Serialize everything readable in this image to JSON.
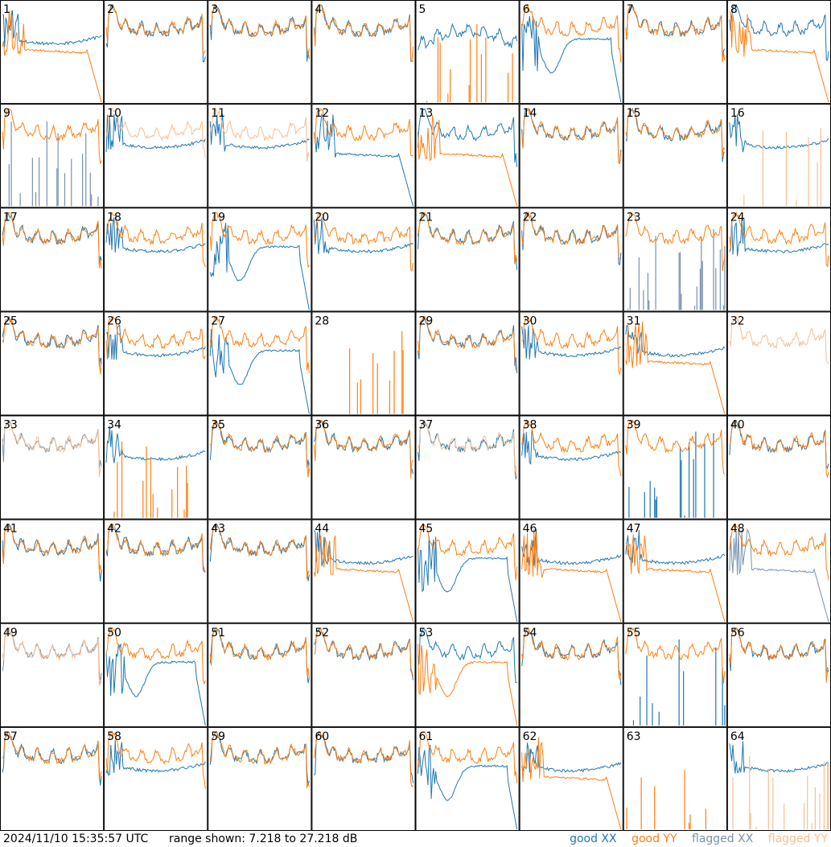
{
  "footer": {
    "timestamp": "2024/11/10 15:35:57 UTC",
    "range_text": "range shown: 7.218 to 27.218 dB"
  },
  "legend": [
    {
      "label": "good XX",
      "color": "#1f77b4"
    },
    {
      "label": "good YY",
      "color": "#ff7f0e"
    },
    {
      "label": "flagged XX",
      "color": "#7792b0"
    },
    {
      "label": "flagged YY",
      "color": "#f7bf93"
    }
  ],
  "chart_data": {
    "type": "line",
    "grid": {
      "rows": 8,
      "cols": 8
    },
    "ylim": [
      7.218,
      27.218
    ],
    "yunit": "dB",
    "panels": [
      {
        "label": "1",
        "xx": "good",
        "yy": "good",
        "xx_shape": "s3",
        "yy_shape": "sag"
      },
      {
        "label": "2",
        "xx": "good",
        "yy": "good",
        "xx_shape": "bowl",
        "yy_shape": "bowl"
      },
      {
        "label": "3",
        "xx": "good",
        "yy": "good",
        "xx_shape": "bowl",
        "yy_shape": "bowl"
      },
      {
        "label": "4",
        "xx": "good",
        "yy": "good",
        "xx_shape": "bowl",
        "yy_shape": "bowl"
      },
      {
        "label": "5",
        "xx": "good",
        "yy": "good",
        "xx_shape": "hump",
        "yy_shape": "spikes"
      },
      {
        "label": "6",
        "xx": "good",
        "yy": "good",
        "xx_shape": "dip",
        "yy_shape": "bowl"
      },
      {
        "label": "7",
        "xx": "good",
        "yy": "good",
        "xx_shape": "bowl",
        "yy_shape": "bowl"
      },
      {
        "label": "8",
        "xx": "good",
        "yy": "good",
        "xx_shape": "bowl",
        "yy_shape": "sag"
      },
      {
        "label": "9",
        "xx": "flagged",
        "yy": "good",
        "xx_shape": "spikes",
        "yy_shape": "bowl"
      },
      {
        "label": "10",
        "xx": "good",
        "yy": "flagged",
        "xx_shape": "s3",
        "yy_shape": "bowl"
      },
      {
        "label": "11",
        "xx": "good",
        "yy": "flagged",
        "xx_shape": "s3",
        "yy_shape": "bowl"
      },
      {
        "label": "12",
        "xx": "good",
        "yy": "good",
        "xx_shape": "sag",
        "yy_shape": "bowl"
      },
      {
        "label": "13",
        "xx": "good",
        "yy": "good",
        "xx_shape": "bowl",
        "yy_shape": "sag"
      },
      {
        "label": "14",
        "xx": "good",
        "yy": "good",
        "xx_shape": "bowl",
        "yy_shape": "bowl"
      },
      {
        "label": "15",
        "xx": "good",
        "yy": "good",
        "xx_shape": "bowl",
        "yy_shape": "bowl"
      },
      {
        "label": "16",
        "xx": "good",
        "yy": "flagged",
        "xx_shape": "s3",
        "yy_shape": "spikes"
      },
      {
        "label": "17",
        "xx": "good",
        "yy": "good",
        "xx_shape": "bowl",
        "yy_shape": "bowl"
      },
      {
        "label": "18",
        "xx": "good",
        "yy": "good",
        "xx_shape": "s3",
        "yy_shape": "bowl"
      },
      {
        "label": "19",
        "xx": "good",
        "yy": "good",
        "xx_shape": "dip",
        "yy_shape": "bowl"
      },
      {
        "label": "20",
        "xx": "good",
        "yy": "good",
        "xx_shape": "s3",
        "yy_shape": "bowl"
      },
      {
        "label": "21",
        "xx": "good",
        "yy": "good",
        "xx_shape": "bowl",
        "yy_shape": "bowl"
      },
      {
        "label": "22",
        "xx": "good",
        "yy": "good",
        "xx_shape": "bowl",
        "yy_shape": "bowl"
      },
      {
        "label": "23",
        "xx": "flagged",
        "yy": "good",
        "xx_shape": "spikes",
        "yy_shape": "bowl"
      },
      {
        "label": "24",
        "xx": "good",
        "yy": "good",
        "xx_shape": "s3",
        "yy_shape": "bowl"
      },
      {
        "label": "25",
        "xx": "good",
        "yy": "good",
        "xx_shape": "bowl",
        "yy_shape": "bowl"
      },
      {
        "label": "26",
        "xx": "good",
        "yy": "good",
        "xx_shape": "s3",
        "yy_shape": "bowl"
      },
      {
        "label": "27",
        "xx": "good",
        "yy": "good",
        "xx_shape": "dip",
        "yy_shape": "bowl"
      },
      {
        "label": "28",
        "xx": "none",
        "yy": "good",
        "xx_shape": "none",
        "yy_shape": "spikes"
      },
      {
        "label": "29",
        "xx": "good",
        "yy": "good",
        "xx_shape": "bowl",
        "yy_shape": "bowl"
      },
      {
        "label": "30",
        "xx": "good",
        "yy": "good",
        "xx_shape": "s3",
        "yy_shape": "bowl"
      },
      {
        "label": "31",
        "xx": "good",
        "yy": "good",
        "xx_shape": "s3",
        "yy_shape": "sag"
      },
      {
        "label": "32",
        "xx": "none",
        "yy": "flagged",
        "xx_shape": "none",
        "yy_shape": "bowl"
      },
      {
        "label": "33",
        "xx": "flagged",
        "yy": "flagged",
        "xx_shape": "bowl",
        "yy_shape": "bowl"
      },
      {
        "label": "34",
        "xx": "good",
        "yy": "good",
        "xx_shape": "s3",
        "yy_shape": "spikes"
      },
      {
        "label": "35",
        "xx": "good",
        "yy": "good",
        "xx_shape": "bowl",
        "yy_shape": "bowl"
      },
      {
        "label": "36",
        "xx": "good",
        "yy": "good",
        "xx_shape": "bowl",
        "yy_shape": "bowl"
      },
      {
        "label": "37",
        "xx": "good",
        "yy": "flagged",
        "xx_shape": "bowl",
        "yy_shape": "bowl"
      },
      {
        "label": "38",
        "xx": "good",
        "yy": "good",
        "xx_shape": "s3",
        "yy_shape": "bowl"
      },
      {
        "label": "39",
        "xx": "good",
        "yy": "good",
        "xx_shape": "spikes",
        "yy_shape": "bowl"
      },
      {
        "label": "40",
        "xx": "good",
        "yy": "good",
        "xx_shape": "bowl",
        "yy_shape": "bowl"
      },
      {
        "label": "41",
        "xx": "good",
        "yy": "good",
        "xx_shape": "bowl",
        "yy_shape": "bowl"
      },
      {
        "label": "42",
        "xx": "good",
        "yy": "good",
        "xx_shape": "bowl",
        "yy_shape": "bowl"
      },
      {
        "label": "43",
        "xx": "good",
        "yy": "good",
        "xx_shape": "bowl",
        "yy_shape": "bowl"
      },
      {
        "label": "44",
        "xx": "good",
        "yy": "good",
        "xx_shape": "s3",
        "yy_shape": "sag"
      },
      {
        "label": "45",
        "xx": "good",
        "yy": "good",
        "xx_shape": "dip",
        "yy_shape": "bowl"
      },
      {
        "label": "46",
        "xx": "good",
        "yy": "good",
        "xx_shape": "s3",
        "yy_shape": "sag"
      },
      {
        "label": "47",
        "xx": "good",
        "yy": "good",
        "xx_shape": "s3",
        "yy_shape": "sag"
      },
      {
        "label": "48",
        "xx": "flagged",
        "yy": "good",
        "xx_shape": "sag",
        "yy_shape": "bowl"
      },
      {
        "label": "49",
        "xx": "flagged",
        "yy": "flagged",
        "xx_shape": "bowl",
        "yy_shape": "bowl"
      },
      {
        "label": "50",
        "xx": "good",
        "yy": "good",
        "xx_shape": "dip",
        "yy_shape": "bowl"
      },
      {
        "label": "51",
        "xx": "good",
        "yy": "good",
        "xx_shape": "bowl",
        "yy_shape": "bowl"
      },
      {
        "label": "52",
        "xx": "good",
        "yy": "good",
        "xx_shape": "bowl",
        "yy_shape": "bowl"
      },
      {
        "label": "53",
        "xx": "good",
        "yy": "good",
        "xx_shape": "bowl",
        "yy_shape": "dip"
      },
      {
        "label": "54",
        "xx": "good",
        "yy": "good",
        "xx_shape": "bowl",
        "yy_shape": "bowl"
      },
      {
        "label": "55",
        "xx": "good",
        "yy": "good",
        "xx_shape": "spikes",
        "yy_shape": "bowl"
      },
      {
        "label": "56",
        "xx": "good",
        "yy": "good",
        "xx_shape": "bowl",
        "yy_shape": "bowl"
      },
      {
        "label": "57",
        "xx": "good",
        "yy": "good",
        "xx_shape": "bowl",
        "yy_shape": "bowl"
      },
      {
        "label": "58",
        "xx": "good",
        "yy": "good",
        "xx_shape": "s3",
        "yy_shape": "bowl"
      },
      {
        "label": "59",
        "xx": "good",
        "yy": "good",
        "xx_shape": "bowl",
        "yy_shape": "bowl"
      },
      {
        "label": "60",
        "xx": "good",
        "yy": "good",
        "xx_shape": "bowl",
        "yy_shape": "bowl"
      },
      {
        "label": "61",
        "xx": "good",
        "yy": "good",
        "xx_shape": "dip",
        "yy_shape": "bowl"
      },
      {
        "label": "62",
        "xx": "good",
        "yy": "good",
        "xx_shape": "s3",
        "yy_shape": "sag"
      },
      {
        "label": "63",
        "xx": "none",
        "yy": "good",
        "xx_shape": "none",
        "yy_shape": "spikes"
      },
      {
        "label": "64",
        "xx": "good",
        "yy": "flagged",
        "xx_shape": "s3",
        "yy_shape": "spikes"
      }
    ]
  }
}
